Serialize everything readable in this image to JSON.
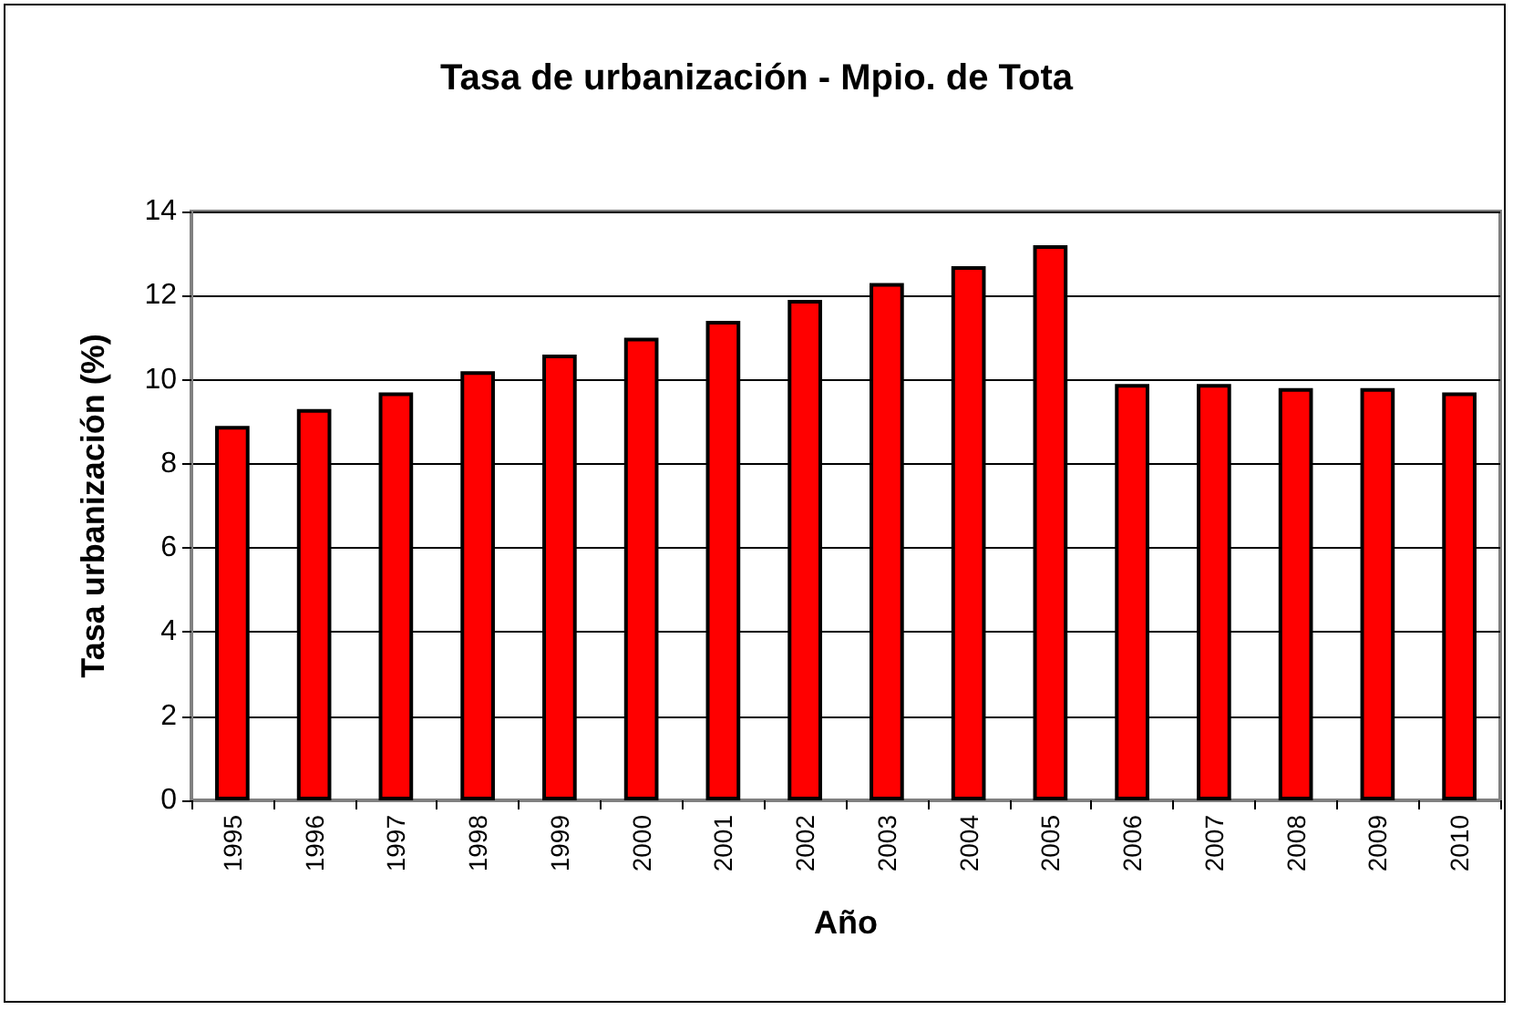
{
  "chart_data": {
    "type": "bar",
    "title": "Tasa de urbanización - Mpio. de Tota",
    "xlabel": "Año",
    "ylabel": "Tasa urbanización (%)",
    "categories": [
      "1995",
      "1996",
      "1997",
      "1998",
      "1999",
      "2000",
      "2001",
      "2002",
      "2003",
      "2004",
      "2005",
      "2006",
      "2007",
      "2008",
      "2009",
      "2010"
    ],
    "values": [
      8.9,
      9.3,
      9.7,
      10.2,
      10.6,
      11.0,
      11.4,
      11.9,
      12.3,
      12.7,
      13.2,
      9.9,
      9.9,
      9.8,
      9.8,
      9.7
    ],
    "color": "#ff0000",
    "ylim": [
      0,
      14
    ],
    "yticks": [
      0,
      2,
      4,
      6,
      8,
      10,
      12,
      14
    ],
    "grid": "y"
  }
}
